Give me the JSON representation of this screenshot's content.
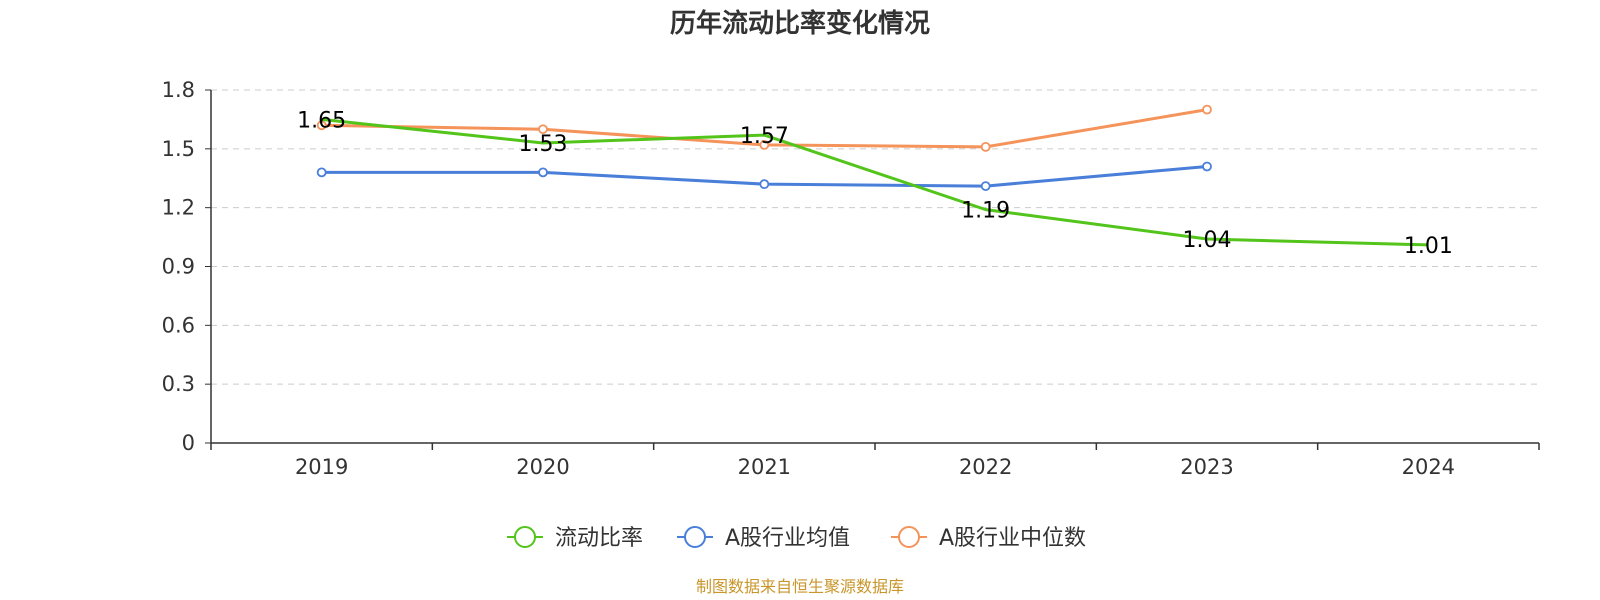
{
  "chart_data": {
    "type": "line",
    "title": "历年流动比率变化情况",
    "categories": [
      "2019",
      "2020",
      "2021",
      "2022",
      "2023",
      "2024"
    ],
    "ylim": [
      0,
      1.8
    ],
    "yticks": [
      "0",
      "0.3",
      "0.6",
      "0.9",
      "1.2",
      "1.5",
      "1.8"
    ],
    "grid": true,
    "legend_position": "bottom",
    "series": [
      {
        "name": "流动比率",
        "color": "#52c41a",
        "values": [
          1.65,
          1.53,
          1.57,
          1.19,
          1.04,
          1.01
        ],
        "show_labels": true,
        "labels": [
          "1.65",
          "1.53",
          "1.57",
          "1.19",
          "1.04",
          "1.01"
        ]
      },
      {
        "name": "A股行业均值",
        "color": "#4a7fd9",
        "values": [
          1.38,
          1.38,
          1.32,
          1.31,
          1.41,
          null
        ],
        "show_labels": false
      },
      {
        "name": "A股行业中位数",
        "color": "#f4935a",
        "values": [
          1.62,
          1.6,
          1.52,
          1.51,
          1.7,
          null
        ],
        "show_labels": false
      }
    ]
  },
  "source_note": "制图数据来自恒生聚源数据库"
}
